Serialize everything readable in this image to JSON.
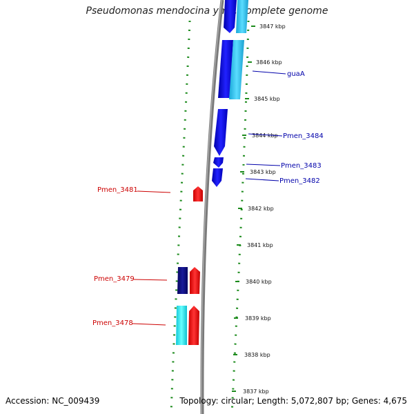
{
  "title": "Pseudomonas mendocina ymp, complete genome",
  "footer": {
    "accession": "Accession: NC_009439",
    "summary": "Topology: circular; Length: 5,072,807 bp; Genes: 4,675"
  },
  "scale_labels": [
    "3847 kbp",
    "3846 kbp",
    "3845 kbp",
    "3844 kbp",
    "3843 kbp",
    "3842 kbp",
    "3841 kbp",
    "3840 kbp",
    "3839 kbp",
    "3838 kbp",
    "3837 kbp"
  ],
  "gene_labels": {
    "guaA": "guaA",
    "pmen_3484": "Pmen_3484",
    "pmen_3483": "Pmen_3483",
    "pmen_3482": "Pmen_3482",
    "pmen_3481": "Pmen_3481",
    "pmen_3479": "Pmen_3479",
    "pmen_3478": "Pmen_3478"
  },
  "colors": {
    "forward_cds": "#0000ee",
    "forward_light": "#29c6ef",
    "reverse_cds": "#ee0000",
    "reverse_dark": "#0a0a80",
    "reverse_light": "#22e6ee",
    "backbone": "#7a7a7a",
    "guide_dots": "#1b8a1b",
    "forward_label": "#0000aa",
    "reverse_label": "#cc0000"
  }
}
